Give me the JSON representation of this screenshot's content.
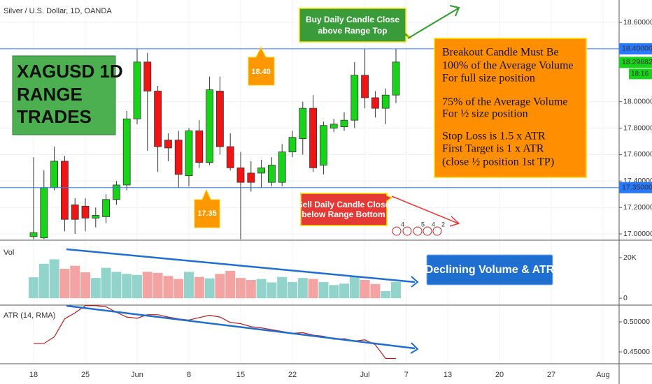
{
  "title": "Silver / U.S. Dollar, 1D, OANDA",
  "annotations": {
    "symbol_box": [
      "XAGUSD 1D",
      "RANGE",
      "TRADES"
    ],
    "top_bubble": "18.40",
    "bottom_bubble": "17.35",
    "buy_note": [
      "Buy Daily Candle Close",
      "above Range Top"
    ],
    "sell_note": [
      "Sell Daily Candle Close",
      "below Range Bottom"
    ],
    "rules": [
      [
        "Breakout Candle Must Be",
        "100% of the Average Volume",
        "For full size position"
      ],
      [
        "75% of the Average Volume",
        "For ½ size position"
      ],
      [
        "Stop Loss is 1.5 x ATR",
        "First Target is 1 x ATR",
        "(close ½ position 1st TP)"
      ]
    ],
    "volume_note": "Declining Volume & ATR",
    "event_counts": [
      4,
      5,
      4,
      2
    ]
  },
  "chart_data": [
    {
      "type": "candlestick",
      "categories": [
        "18",
        null,
        null,
        null,
        null,
        "25",
        null,
        null,
        null,
        null,
        "Jun",
        null,
        null,
        null,
        null,
        "8",
        null,
        null,
        null,
        null,
        "15",
        null,
        null,
        null,
        null,
        "22",
        null,
        null,
        null,
        null,
        null,
        null,
        "Jul",
        null,
        null,
        null,
        "7",
        null,
        null,
        null,
        "13",
        null,
        null,
        null,
        null,
        "20",
        null,
        null,
        null,
        null,
        "27",
        null,
        null,
        null,
        null,
        "Aug"
      ],
      "open": [
        16.98,
        16.97,
        17.35,
        17.55,
        17.22,
        17.21,
        17.12,
        17.13,
        17.26,
        17.37,
        17.87,
        18.3,
        18.08,
        17.71,
        17.71,
        17.44,
        17.78,
        17.54,
        18.08,
        17.66,
        17.5,
        17.46,
        17.46,
        17.39,
        17.39,
        17.62,
        17.72,
        17.95,
        17.52,
        17.8,
        17.81,
        17.86,
        18.2,
        18.03,
        17.95,
        18.05,
        null,
        null,
        null,
        null,
        null,
        null,
        null,
        null,
        null,
        null,
        null,
        null,
        null,
        null,
        null,
        null,
        null,
        null,
        null,
        null
      ],
      "high": [
        17.58,
        17.48,
        17.66,
        17.59,
        17.27,
        17.27,
        17.2,
        17.3,
        17.4,
        17.93,
        18.4,
        18.37,
        18.12,
        17.76,
        17.78,
        17.8,
        17.86,
        18.19,
        18.19,
        17.76,
        17.62,
        17.55,
        17.56,
        17.58,
        17.68,
        17.78,
        18.0,
        18.05,
        17.85,
        17.87,
        17.92,
        18.3,
        18.4,
        18.08,
        18.1,
        18.4,
        null,
        null,
        null,
        null,
        null,
        null,
        null,
        null,
        null,
        null,
        null,
        null,
        null,
        null,
        null,
        null,
        null,
        null,
        null,
        null
      ],
      "low": [
        16.96,
        16.96,
        17.33,
        17.02,
        17.0,
        17.02,
        17.05,
        17.08,
        17.22,
        17.33,
        17.83,
        17.63,
        17.47,
        17.55,
        17.35,
        17.36,
        17.5,
        17.52,
        17.6,
        17.48,
        16.96,
        17.32,
        17.35,
        17.36,
        17.36,
        17.58,
        17.6,
        17.47,
        17.45,
        17.77,
        17.78,
        17.8,
        17.95,
        17.88,
        17.83,
        17.99,
        null,
        null,
        null,
        null,
        null,
        null,
        null,
        null,
        null,
        null,
        null,
        null,
        null,
        null,
        null,
        null,
        null,
        null,
        null,
        null
      ],
      "close": [
        17.01,
        17.35,
        17.55,
        17.11,
        17.11,
        17.12,
        17.14,
        17.26,
        17.37,
        17.87,
        18.3,
        18.08,
        17.66,
        17.65,
        17.45,
        17.78,
        17.54,
        18.09,
        17.66,
        17.5,
        17.39,
        17.39,
        17.5,
        17.52,
        17.62,
        17.73,
        17.95,
        17.5,
        17.82,
        17.83,
        17.86,
        18.2,
        18.03,
        17.95,
        18.05,
        18.3,
        null,
        null,
        null,
        null,
        null,
        null,
        null,
        null,
        null,
        null,
        null,
        null,
        null,
        null,
        null,
        null,
        null,
        null,
        null,
        null
      ],
      "up_color": "#18d418",
      "down_color": "#f01414",
      "ylim": [
        16.958,
        18.769
      ],
      "yticks": [
        {
          "value": 17.0,
          "label": "17.00000"
        },
        {
          "value": 17.2,
          "label": "17.20000"
        },
        {
          "value": 17.4,
          "label": "17.40000"
        },
        {
          "value": 17.6,
          "label": "17.60000"
        },
        {
          "value": 17.8,
          "label": "17.80000"
        },
        {
          "value": 18.0,
          "label": "18.00000"
        },
        {
          "value": 18.6,
          "label": "18.60000"
        }
      ],
      "levels": [
        {
          "value": 18.4,
          "label": "18.40000"
        },
        {
          "value": 17.35,
          "label": "17.35000"
        }
      ],
      "level_color": "#2979ff",
      "last_price": 18.29682,
      "countdown": "18:16",
      "grid": true
    },
    {
      "type": "bar",
      "title": "Vol",
      "values": [
        10300,
        17000,
        19200,
        14500,
        16000,
        12800,
        10000,
        15000,
        13000,
        12000,
        11500,
        13000,
        12500,
        11000,
        9500,
        13000,
        10500,
        9800,
        12000,
        13500,
        10000,
        9000,
        9500,
        7800,
        10500,
        8000,
        10000,
        9500,
        8000,
        6500,
        7200,
        11000,
        9000,
        7000,
        3500,
        8000,
        null,
        null,
        null,
        null,
        null,
        null,
        null,
        null,
        null,
        null,
        null,
        null,
        null,
        null,
        null,
        null,
        null,
        null,
        null,
        null
      ],
      "up_color": "#92d4cc",
      "down_color": "#f4a3a3",
      "ylim": [
        -3400,
        28300
      ],
      "yticks": [
        {
          "value": 20000,
          "label": "20K"
        },
        0
      ]
    },
    {
      "type": "line",
      "title": "ATR (14, RMA)",
      "values": [
        0.464,
        0.464,
        0.475,
        0.505,
        0.515,
        0.527,
        0.527,
        0.525,
        0.516,
        0.508,
        0.506,
        0.512,
        0.512,
        0.508,
        0.505,
        0.503,
        0.507,
        0.511,
        0.508,
        0.499,
        0.497,
        0.492,
        0.49,
        0.487,
        0.484,
        0.481,
        0.482,
        0.478,
        0.476,
        0.471,
        0.472,
        0.468,
        0.47,
        0.462,
        0.439,
        0.439,
        null,
        null,
        null,
        null,
        null,
        null,
        null,
        null,
        null,
        null,
        null,
        null,
        null,
        null,
        null,
        null,
        null,
        null,
        null,
        null
      ],
      "color": "#b71c1c",
      "ylim": [
        0.4314,
        0.5279
      ],
      "yticks": [
        {
          "value": 0.5,
          "label": "0.50000"
        },
        {
          "value": 0.45,
          "label": "0.45000"
        }
      ]
    }
  ]
}
